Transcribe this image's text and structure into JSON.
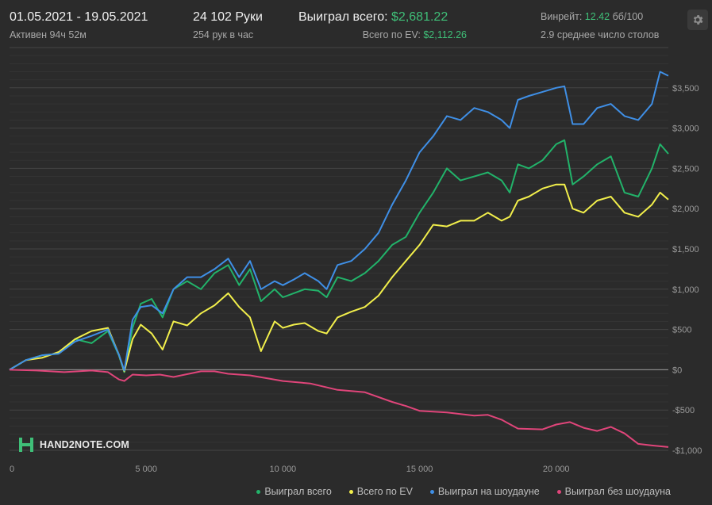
{
  "header": {
    "date_range": "01.05.2021 - 19.05.2021",
    "active_time": "Активен 94ч 52м",
    "hands": "24 102 Руки",
    "hands_per_hour": "254 рук в час",
    "won_total_label": "Выиграл всего:",
    "won_total_value": "$2,681.22",
    "ev_label": "Всего по EV:",
    "ev_value": "$2,112.26",
    "winrate_label": "Винрейт:",
    "winrate_value": "12.42",
    "winrate_unit": "бб/100",
    "avg_tables": "2.9 среднее число столов"
  },
  "logo_text": "HAND2NOTE.COM",
  "icons": {
    "settings": "gear-icon",
    "logo": "h2n-logo-icon"
  },
  "colors": {
    "background": "#2b2b2b",
    "grid": "#3c3c3c",
    "zero_line": "#8a8a8a",
    "won_total": "#22b36a",
    "ev": "#f2ef4b",
    "showdown": "#3f8fe6",
    "non_showdown": "#e0457a"
  },
  "chart_data": {
    "type": "line",
    "xlim": [
      0,
      24102
    ],
    "ylim": [
      -1000,
      4000
    ],
    "x_ticks": [
      {
        "value": 0,
        "label": "0"
      },
      {
        "value": 5000,
        "label": "5 000"
      },
      {
        "value": 10000,
        "label": "10 000"
      },
      {
        "value": 15000,
        "label": "15 000"
      },
      {
        "value": 20000,
        "label": "20 000"
      }
    ],
    "y_ticks": [
      {
        "value": -1000,
        "label": "-$1,000"
      },
      {
        "value": -500,
        "label": "-$500"
      },
      {
        "value": 0,
        "label": "$0"
      },
      {
        "value": 500,
        "label": "$500"
      },
      {
        "value": 1000,
        "label": "$1,000"
      },
      {
        "value": 1500,
        "label": "$1,500"
      },
      {
        "value": 2000,
        "label": "$2,000"
      },
      {
        "value": 2500,
        "label": "$2,500"
      },
      {
        "value": 3000,
        "label": "$3,000"
      },
      {
        "value": 3500,
        "label": "$3,500"
      }
    ],
    "grid": true,
    "legend_position": "bottom-right",
    "series": [
      {
        "name": "Выиграл всего",
        "color": "#22b36a",
        "points": [
          [
            0,
            0
          ],
          [
            600,
            120
          ],
          [
            1200,
            180
          ],
          [
            1800,
            200
          ],
          [
            2400,
            380
          ],
          [
            3000,
            330
          ],
          [
            3600,
            480
          ],
          [
            4000,
            180
          ],
          [
            4200,
            -30
          ],
          [
            4500,
            520
          ],
          [
            4800,
            820
          ],
          [
            5200,
            880
          ],
          [
            5600,
            650
          ],
          [
            6000,
            1000
          ],
          [
            6500,
            1100
          ],
          [
            7000,
            1000
          ],
          [
            7500,
            1200
          ],
          [
            8000,
            1300
          ],
          [
            8400,
            1050
          ],
          [
            8800,
            1250
          ],
          [
            9200,
            850
          ],
          [
            9700,
            1000
          ],
          [
            10000,
            900
          ],
          [
            10400,
            950
          ],
          [
            10800,
            1000
          ],
          [
            11300,
            980
          ],
          [
            11600,
            900
          ],
          [
            12000,
            1150
          ],
          [
            12500,
            1100
          ],
          [
            13000,
            1200
          ],
          [
            13500,
            1350
          ],
          [
            14000,
            1550
          ],
          [
            14500,
            1650
          ],
          [
            15000,
            1950
          ],
          [
            15500,
            2200
          ],
          [
            16000,
            2500
          ],
          [
            16500,
            2350
          ],
          [
            17000,
            2400
          ],
          [
            17500,
            2450
          ],
          [
            18000,
            2350
          ],
          [
            18300,
            2200
          ],
          [
            18600,
            2550
          ],
          [
            19000,
            2500
          ],
          [
            19500,
            2600
          ],
          [
            20000,
            2800
          ],
          [
            20300,
            2850
          ],
          [
            20600,
            2300
          ],
          [
            21000,
            2400
          ],
          [
            21500,
            2550
          ],
          [
            22000,
            2650
          ],
          [
            22500,
            2200
          ],
          [
            23000,
            2150
          ],
          [
            23500,
            2500
          ],
          [
            23800,
            2800
          ],
          [
            24102,
            2681
          ]
        ]
      },
      {
        "name": "Всего по EV",
        "color": "#f2ef4b",
        "points": [
          [
            0,
            0
          ],
          [
            600,
            120
          ],
          [
            1200,
            150
          ],
          [
            1800,
            220
          ],
          [
            2400,
            380
          ],
          [
            3000,
            480
          ],
          [
            3600,
            520
          ],
          [
            4000,
            190
          ],
          [
            4200,
            -20
          ],
          [
            4500,
            380
          ],
          [
            4800,
            560
          ],
          [
            5200,
            450
          ],
          [
            5600,
            250
          ],
          [
            6000,
            600
          ],
          [
            6500,
            550
          ],
          [
            7000,
            700
          ],
          [
            7500,
            800
          ],
          [
            8000,
            950
          ],
          [
            8400,
            780
          ],
          [
            8800,
            650
          ],
          [
            9200,
            230
          ],
          [
            9700,
            600
          ],
          [
            10000,
            520
          ],
          [
            10400,
            560
          ],
          [
            10800,
            580
          ],
          [
            11300,
            480
          ],
          [
            11600,
            450
          ],
          [
            12000,
            650
          ],
          [
            12500,
            720
          ],
          [
            13000,
            780
          ],
          [
            13500,
            920
          ],
          [
            14000,
            1150
          ],
          [
            14500,
            1350
          ],
          [
            15000,
            1550
          ],
          [
            15500,
            1800
          ],
          [
            16000,
            1780
          ],
          [
            16500,
            1850
          ],
          [
            17000,
            1850
          ],
          [
            17500,
            1950
          ],
          [
            18000,
            1850
          ],
          [
            18300,
            1900
          ],
          [
            18600,
            2100
          ],
          [
            19000,
            2150
          ],
          [
            19500,
            2250
          ],
          [
            20000,
            2300
          ],
          [
            20300,
            2300
          ],
          [
            20600,
            2000
          ],
          [
            21000,
            1950
          ],
          [
            21500,
            2100
          ],
          [
            22000,
            2150
          ],
          [
            22500,
            1950
          ],
          [
            23000,
            1900
          ],
          [
            23500,
            2050
          ],
          [
            23800,
            2200
          ],
          [
            24102,
            2112
          ]
        ]
      },
      {
        "name": "Выиграл на шоудауне",
        "color": "#3f8fe6",
        "points": [
          [
            0,
            0
          ],
          [
            600,
            120
          ],
          [
            1200,
            180
          ],
          [
            1800,
            200
          ],
          [
            2400,
            350
          ],
          [
            3000,
            420
          ],
          [
            3600,
            500
          ],
          [
            4000,
            190
          ],
          [
            4200,
            -10
          ],
          [
            4500,
            620
          ],
          [
            4800,
            780
          ],
          [
            5200,
            800
          ],
          [
            5600,
            700
          ],
          [
            6000,
            1000
          ],
          [
            6500,
            1150
          ],
          [
            7000,
            1150
          ],
          [
            7500,
            1250
          ],
          [
            8000,
            1380
          ],
          [
            8400,
            1150
          ],
          [
            8800,
            1350
          ],
          [
            9200,
            1000
          ],
          [
            9700,
            1100
          ],
          [
            10000,
            1050
          ],
          [
            10400,
            1120
          ],
          [
            10800,
            1200
          ],
          [
            11300,
            1100
          ],
          [
            11600,
            1000
          ],
          [
            12000,
            1300
          ],
          [
            12500,
            1350
          ],
          [
            13000,
            1500
          ],
          [
            13500,
            1700
          ],
          [
            14000,
            2050
          ],
          [
            14500,
            2350
          ],
          [
            15000,
            2700
          ],
          [
            15500,
            2900
          ],
          [
            16000,
            3150
          ],
          [
            16500,
            3100
          ],
          [
            17000,
            3250
          ],
          [
            17500,
            3200
          ],
          [
            18000,
            3100
          ],
          [
            18300,
            3000
          ],
          [
            18600,
            3350
          ],
          [
            19000,
            3400
          ],
          [
            19500,
            3450
          ],
          [
            20000,
            3500
          ],
          [
            20300,
            3520
          ],
          [
            20600,
            3050
          ],
          [
            21000,
            3050
          ],
          [
            21500,
            3250
          ],
          [
            22000,
            3300
          ],
          [
            22500,
            3150
          ],
          [
            23000,
            3100
          ],
          [
            23500,
            3300
          ],
          [
            23800,
            3700
          ],
          [
            24102,
            3650
          ]
        ]
      },
      {
        "name": "Выиграл без шоудауна",
        "color": "#e0457a",
        "points": [
          [
            0,
            0
          ],
          [
            1000,
            -10
          ],
          [
            2000,
            -30
          ],
          [
            3000,
            -10
          ],
          [
            3600,
            -30
          ],
          [
            4000,
            -120
          ],
          [
            4200,
            -140
          ],
          [
            4500,
            -60
          ],
          [
            5000,
            -70
          ],
          [
            5500,
            -60
          ],
          [
            6000,
            -90
          ],
          [
            7000,
            -20
          ],
          [
            7500,
            -20
          ],
          [
            8000,
            -50
          ],
          [
            8800,
            -70
          ],
          [
            9500,
            -110
          ],
          [
            10000,
            -140
          ],
          [
            11000,
            -170
          ],
          [
            12000,
            -250
          ],
          [
            13000,
            -280
          ],
          [
            14000,
            -400
          ],
          [
            14500,
            -450
          ],
          [
            15000,
            -510
          ],
          [
            16000,
            -530
          ],
          [
            17000,
            -570
          ],
          [
            17500,
            -560
          ],
          [
            18000,
            -620
          ],
          [
            18600,
            -730
          ],
          [
            19500,
            -740
          ],
          [
            20000,
            -680
          ],
          [
            20500,
            -650
          ],
          [
            21000,
            -720
          ],
          [
            21500,
            -760
          ],
          [
            22000,
            -710
          ],
          [
            22500,
            -790
          ],
          [
            23000,
            -920
          ],
          [
            23500,
            -940
          ],
          [
            24102,
            -960
          ]
        ]
      }
    ]
  }
}
